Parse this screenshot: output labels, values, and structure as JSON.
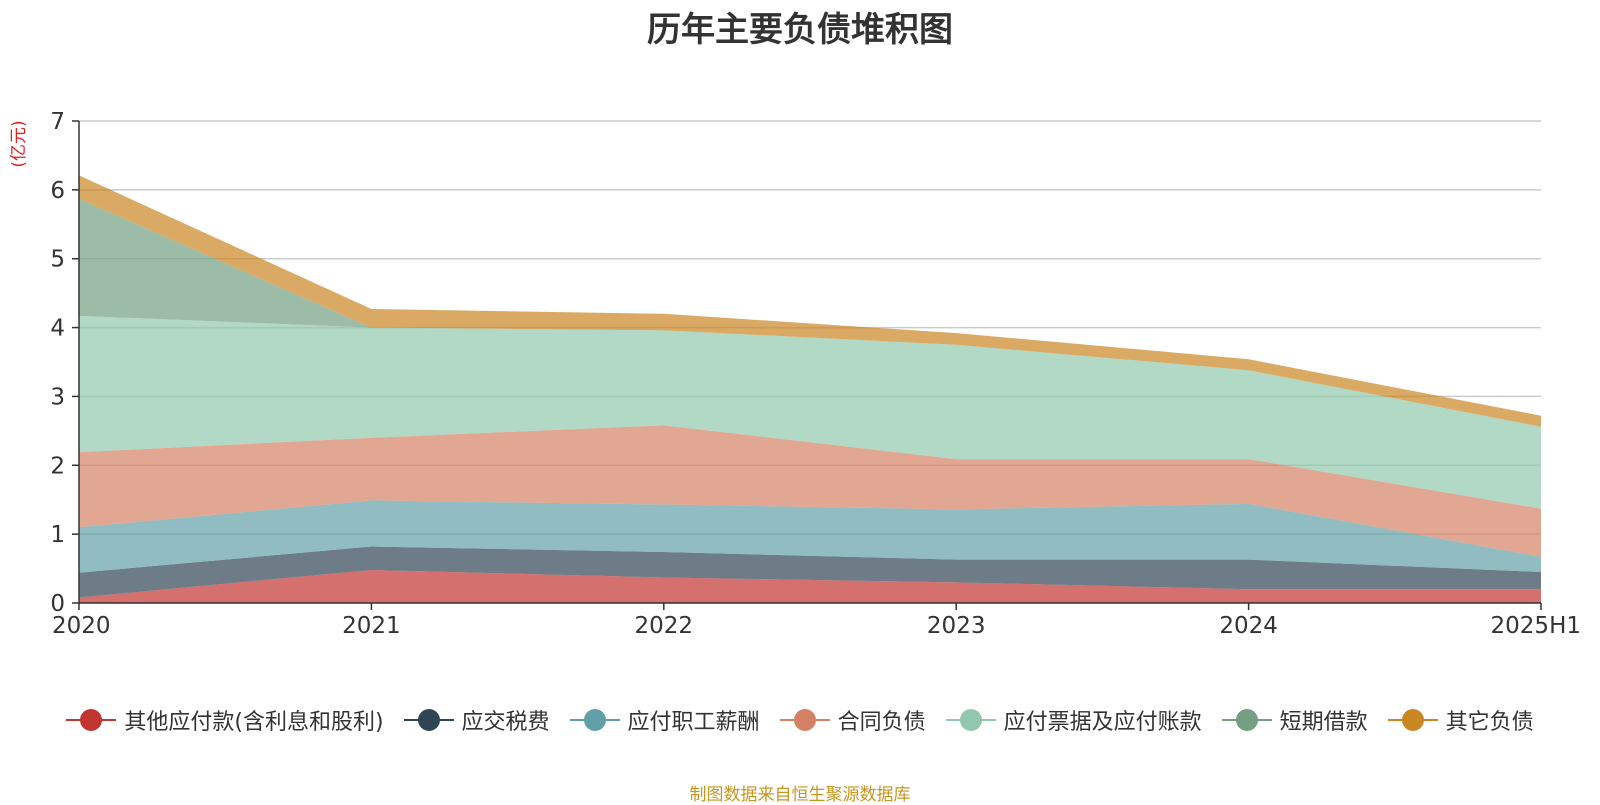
{
  "chart_data": {
    "type": "area",
    "stacked": true,
    "title": "历年主要负债堆积图",
    "ylabel": "(亿元)",
    "xlabel": "",
    "categories": [
      "2020",
      "2021",
      "2022",
      "2023",
      "2024",
      "2025H1"
    ],
    "ylim": [
      0,
      7
    ],
    "yticks": [
      0,
      1,
      2,
      3,
      4,
      5,
      6,
      7
    ],
    "grid": true,
    "legend_position": "bottom",
    "series": [
      {
        "name": "其他应付款(含利息和股利)",
        "color": "#c23531",
        "values": [
          0.08,
          0.48,
          0.37,
          0.3,
          0.2,
          0.2
        ]
      },
      {
        "name": "应交税费",
        "color": "#2f4554",
        "values": [
          0.36,
          0.34,
          0.37,
          0.33,
          0.43,
          0.25
        ]
      },
      {
        "name": "应付职工薪酬",
        "color": "#61a0a8",
        "values": [
          0.66,
          0.67,
          0.69,
          0.73,
          0.81,
          0.22
        ]
      },
      {
        "name": "合同负债",
        "color": "#d48265",
        "values": [
          1.09,
          0.91,
          1.15,
          0.73,
          0.65,
          0.7
        ]
      },
      {
        "name": "应付票据及应付账款",
        "color": "#91c7ae",
        "values": [
          1.98,
          1.6,
          1.38,
          1.66,
          1.29,
          1.19
        ]
      },
      {
        "name": "短期借款",
        "color": "#749f83",
        "values": [
          1.7,
          0.0,
          0.0,
          0.0,
          0.0,
          0.0
        ]
      },
      {
        "name": "其它负债",
        "color": "#ca8622",
        "values": [
          0.34,
          0.27,
          0.24,
          0.17,
          0.16,
          0.16
        ]
      }
    ]
  },
  "source_note": "制图数据来自恒生聚源数据库"
}
